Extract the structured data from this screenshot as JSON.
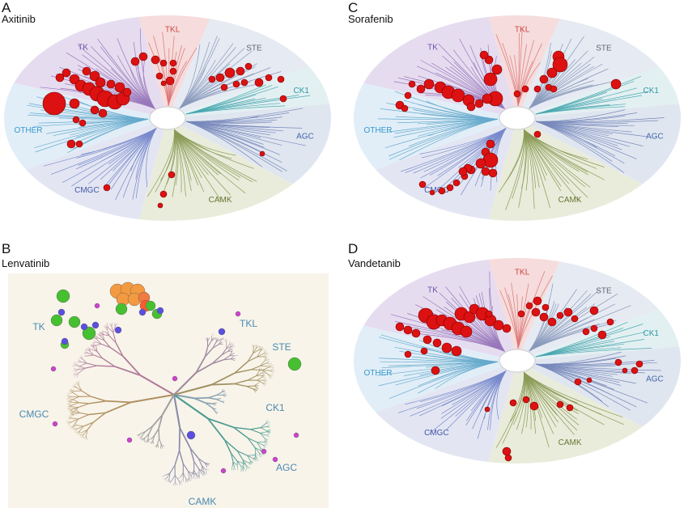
{
  "panels": [
    {
      "letter": "A",
      "drug": "Axitinib"
    },
    {
      "letter": "B",
      "drug": "Lenvatinib"
    },
    {
      "letter": "C",
      "drug": "Sorafenib"
    },
    {
      "letter": "D",
      "drug": "Vandetanib"
    }
  ],
  "groups": {
    "tk": "TK",
    "tkl": "TKL",
    "ste": "STE",
    "ck1": "CK1",
    "agc": "AGC",
    "camk": "CAMK",
    "cmgc": "CMGC",
    "other": "OTHER"
  },
  "colors": {
    "tk": "#e6dcef",
    "tkl": "#f6dcdc",
    "ste": "#e6eaf2",
    "ck1": "#e3f0f2",
    "agc": "#e0e6f0",
    "camk": "#e9ecdb",
    "cmgc": "#e3e6f2",
    "other": "#e1eef8",
    "hit": "#dd1111",
    "treeB_bg": "#f8f4ea"
  }
}
